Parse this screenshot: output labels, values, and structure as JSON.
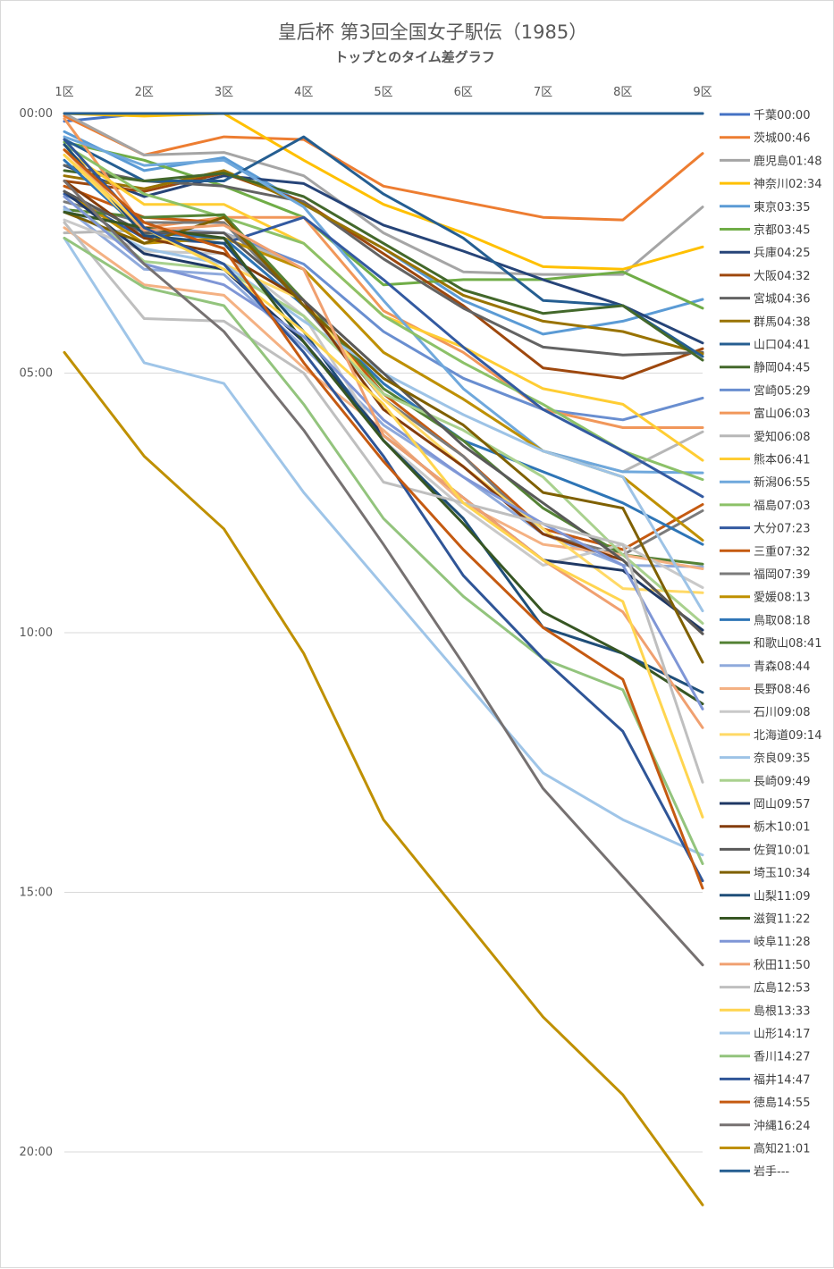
{
  "chart_data": {
    "type": "line",
    "title": "皇后杯 第3回全国女子駅伝（1985）",
    "subtitle": "トップとのタイム差グラフ",
    "categories": [
      "1区",
      "2区",
      "3区",
      "4区",
      "5区",
      "6区",
      "7区",
      "8区",
      "9区"
    ],
    "y_ticks": [
      "00:00",
      "05:00",
      "10:00",
      "15:00",
      "20:00"
    ],
    "y_unit": "minutes",
    "ylim": [
      0,
      22
    ],
    "y_inverted": true,
    "x_axis_position": "top",
    "grid": "horizontal",
    "legend_position": "right",
    "series": [
      {
        "name": "千葉00:00",
        "color": "#4472c4",
        "values": [
          0.15,
          0.0,
          0.0,
          0.0,
          0.0,
          0.0,
          0.0,
          0.0,
          0.0
        ]
      },
      {
        "name": "茨城00:46",
        "color": "#ed7d31",
        "values": [
          0.05,
          0.8,
          0.45,
          0.5,
          1.4,
          1.7,
          2.0,
          2.05,
          0.77
        ]
      },
      {
        "name": "鹿児島01:48",
        "color": "#a5a5a5",
        "values": [
          0.0,
          0.8,
          0.75,
          1.2,
          2.3,
          3.05,
          3.1,
          3.1,
          1.8
        ]
      },
      {
        "name": "神奈川02:34",
        "color": "#ffc000",
        "values": [
          0.0,
          0.05,
          0.0,
          0.9,
          1.75,
          2.3,
          2.95,
          3.0,
          2.57
        ]
      },
      {
        "name": "東京03:35",
        "color": "#5b9bd5",
        "values": [
          0.35,
          1.1,
          0.85,
          1.75,
          2.6,
          3.6,
          4.25,
          4.0,
          3.58
        ]
      },
      {
        "name": "京都03:45",
        "color": "#70ad47",
        "values": [
          0.55,
          0.9,
          1.4,
          2.0,
          3.3,
          3.2,
          3.2,
          3.05,
          3.75
        ]
      },
      {
        "name": "兵庫04:25",
        "color": "#264478",
        "values": [
          1.0,
          1.6,
          1.2,
          1.35,
          2.15,
          2.65,
          3.2,
          3.7,
          4.42
        ]
      },
      {
        "name": "大阪04:32",
        "color": "#9e480e",
        "values": [
          1.3,
          1.5,
          1.15,
          1.7,
          2.7,
          3.7,
          4.9,
          5.1,
          4.53
        ]
      },
      {
        "name": "宮城04:36",
        "color": "#636363",
        "values": [
          1.0,
          1.3,
          1.4,
          1.7,
          2.8,
          3.75,
          4.5,
          4.65,
          4.6
        ]
      },
      {
        "name": "群馬04:38",
        "color": "#997300",
        "values": [
          1.2,
          1.45,
          1.1,
          1.75,
          2.6,
          3.5,
          4.0,
          4.2,
          4.63
        ]
      },
      {
        "name": "山口04:41",
        "color": "#255e91",
        "values": [
          0.5,
          1.3,
          1.3,
          0.45,
          1.55,
          2.4,
          3.6,
          3.7,
          4.68
        ]
      },
      {
        "name": "静岡04:45",
        "color": "#43682b",
        "values": [
          1.1,
          1.3,
          1.15,
          1.6,
          2.5,
          3.4,
          3.85,
          3.7,
          4.75
        ]
      },
      {
        "name": "宮崎05:29",
        "color": "#698ed0",
        "values": [
          1.9,
          2.2,
          2.3,
          2.9,
          4.2,
          5.1,
          5.7,
          5.9,
          5.48
        ]
      },
      {
        "name": "富山06:03",
        "color": "#f1975a",
        "values": [
          0.1,
          2.2,
          2.0,
          2.0,
          3.8,
          4.6,
          5.7,
          6.05,
          6.05
        ]
      },
      {
        "name": "愛知06:08",
        "color": "#b7b7b7",
        "values": [
          2.3,
          2.25,
          2.3,
          3.0,
          4.6,
          5.5,
          6.5,
          6.9,
          6.13
        ]
      },
      {
        "name": "熊本06:41",
        "color": "#ffcd33",
        "values": [
          0.7,
          1.75,
          1.75,
          2.5,
          3.9,
          4.5,
          5.3,
          5.6,
          6.68
        ]
      },
      {
        "name": "新潟06:55",
        "color": "#6fa8dc",
        "values": [
          0.45,
          1.0,
          0.9,
          1.8,
          3.6,
          5.3,
          6.5,
          6.9,
          6.92
        ]
      },
      {
        "name": "福島07:03",
        "color": "#8cc168",
        "values": [
          0.6,
          1.55,
          2.0,
          2.5,
          3.9,
          4.8,
          5.6,
          6.5,
          7.05
        ]
      },
      {
        "name": "大分07:23",
        "color": "#335aa1",
        "values": [
          1.55,
          2.4,
          2.5,
          2.0,
          3.2,
          4.5,
          5.7,
          6.5,
          7.38
        ]
      },
      {
        "name": "三重07:32",
        "color": "#c55a11",
        "values": [
          1.4,
          2.0,
          2.1,
          3.6,
          5.4,
          6.6,
          8.0,
          8.4,
          7.53
        ]
      },
      {
        "name": "福岡07:39",
        "color": "#7b7b7b",
        "values": [
          1.7,
          2.1,
          2.1,
          3.7,
          5.5,
          6.6,
          8.1,
          8.5,
          7.65
        ]
      },
      {
        "name": "愛媛08:13",
        "color": "#bf9000",
        "values": [
          1.5,
          2.5,
          2.4,
          3.0,
          4.6,
          5.5,
          6.5,
          7.0,
          8.22
        ]
      },
      {
        "name": "鳥取08:18",
        "color": "#2e75b6",
        "values": [
          0.9,
          2.3,
          2.4,
          3.7,
          5.2,
          6.3,
          6.9,
          7.5,
          8.3
        ]
      },
      {
        "name": "和歌山08:41",
        "color": "#548235",
        "values": [
          1.85,
          2.0,
          1.95,
          3.6,
          5.3,
          6.3,
          7.6,
          8.5,
          8.68
        ]
      },
      {
        "name": "青森08:44",
        "color": "#8faadc",
        "values": [
          1.8,
          3.0,
          3.1,
          4.5,
          6.0,
          7.0,
          8.1,
          8.7,
          8.73
        ]
      },
      {
        "name": "長野08:46",
        "color": "#f4b183",
        "values": [
          2.2,
          3.3,
          3.5,
          4.9,
          6.1,
          7.5,
          8.3,
          8.5,
          8.77
        ]
      },
      {
        "name": "石川09:08",
        "color": "#c9c9c9",
        "values": [
          2.05,
          2.65,
          2.7,
          3.9,
          6.3,
          7.6,
          8.7,
          8.3,
          9.13
        ]
      },
      {
        "name": "北海道09:14",
        "color": "#ffd966",
        "values": [
          0.8,
          2.3,
          2.9,
          3.6,
          5.5,
          6.8,
          8.0,
          9.15,
          9.23
        ]
      },
      {
        "name": "奈良09:35",
        "color": "#9dc3e6",
        "values": [
          1.85,
          2.6,
          2.9,
          4.0,
          5.0,
          5.8,
          6.5,
          7.0,
          9.58
        ]
      },
      {
        "name": "長崎09:49",
        "color": "#a9d18e",
        "values": [
          1.6,
          2.85,
          3.0,
          3.9,
          5.4,
          6.1,
          7.0,
          8.5,
          9.82
        ]
      },
      {
        "name": "岡山09:57",
        "color": "#1f3864",
        "values": [
          1.5,
          2.7,
          3.0,
          4.4,
          6.2,
          7.4,
          8.6,
          8.8,
          9.95
        ]
      },
      {
        "name": "栃木10:01",
        "color": "#843c0c",
        "values": [
          1.3,
          2.4,
          2.7,
          3.6,
          5.7,
          6.8,
          8.1,
          8.6,
          10.02
        ]
      },
      {
        "name": "佐賀10:01",
        "color": "#595959",
        "values": [
          1.5,
          2.3,
          2.3,
          3.6,
          5.0,
          6.4,
          7.5,
          8.6,
          10.02
        ]
      },
      {
        "name": "埼玉10:34",
        "color": "#7f6000",
        "values": [
          1.9,
          2.5,
          2.0,
          3.7,
          5.1,
          6.0,
          7.3,
          7.6,
          10.57
        ]
      },
      {
        "name": "山梨11:09",
        "color": "#1f4e79",
        "values": [
          0.6,
          2.35,
          2.5,
          4.2,
          6.3,
          7.8,
          9.9,
          10.4,
          11.15
        ]
      },
      {
        "name": "滋賀11:22",
        "color": "#375623",
        "values": [
          1.9,
          2.2,
          2.4,
          4.4,
          6.3,
          7.9,
          9.6,
          10.4,
          11.37
        ]
      },
      {
        "name": "岐阜11:28",
        "color": "#7f96d6",
        "values": [
          1.6,
          2.9,
          3.3,
          4.3,
          5.9,
          7.0,
          7.9,
          8.7,
          11.47
        ]
      },
      {
        "name": "秋田11:50",
        "color": "#f0a070",
        "values": [
          0.7,
          2.25,
          2.15,
          3.0,
          6.2,
          7.4,
          8.6,
          9.6,
          11.83
        ]
      },
      {
        "name": "広島12:53",
        "color": "#bfbfbf",
        "values": [
          2.1,
          3.95,
          4.0,
          5.0,
          7.1,
          7.5,
          7.9,
          8.3,
          12.88
        ]
      },
      {
        "name": "島根13:33",
        "color": "#ffd54f",
        "values": [
          0.8,
          2.2,
          3.0,
          4.2,
          5.6,
          7.5,
          8.6,
          9.4,
          13.55
        ]
      },
      {
        "name": "山形14:17",
        "color": "#9fc5e8",
        "values": [
          2.4,
          4.8,
          5.2,
          7.3,
          9.1,
          10.9,
          12.7,
          13.6,
          14.28
        ]
      },
      {
        "name": "香川14:27",
        "color": "#93c47d",
        "values": [
          2.4,
          3.35,
          3.7,
          5.6,
          7.8,
          9.3,
          10.5,
          11.1,
          14.45
        ]
      },
      {
        "name": "福井14:47",
        "color": "#2f5597",
        "values": [
          0.5,
          2.2,
          2.9,
          4.6,
          6.6,
          8.9,
          10.5,
          11.9,
          14.78
        ]
      },
      {
        "name": "徳島14:55",
        "color": "#c55a11",
        "values": [
          0.7,
          2.1,
          2.6,
          4.8,
          6.7,
          8.4,
          9.9,
          10.9,
          14.92
        ]
      },
      {
        "name": "沖縄16:24",
        "color": "#767171",
        "values": [
          1.3,
          2.9,
          4.2,
          6.1,
          8.3,
          10.6,
          13.0,
          14.7,
          16.4
        ]
      },
      {
        "name": "高知21:01",
        "color": "#bf9000",
        "values": [
          4.6,
          6.6,
          8.0,
          10.4,
          13.6,
          15.5,
          17.4,
          18.9,
          21.02
        ]
      },
      {
        "name": "岩手---",
        "color": "#255e91",
        "values": [
          0.0,
          0.0,
          0.0,
          0.0,
          0.0,
          0.0,
          0.0,
          0.0,
          0.0
        ]
      }
    ]
  }
}
